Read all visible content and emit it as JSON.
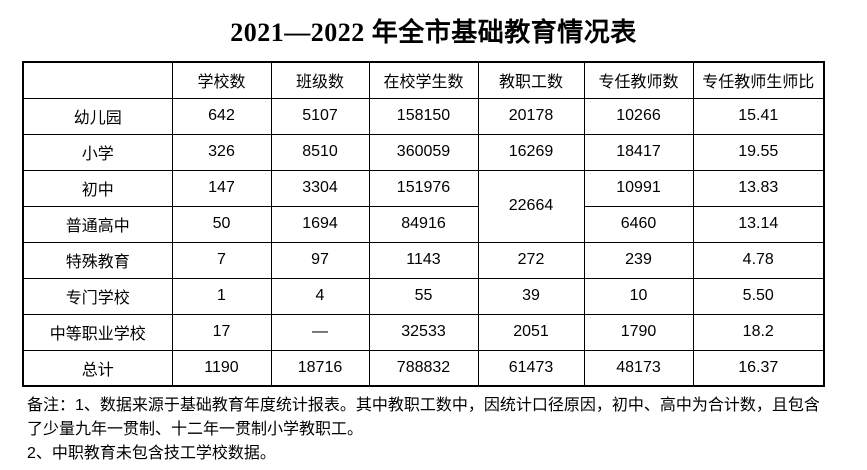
{
  "title": "2021—2022 年全市基础教育情况表",
  "table": {
    "headers": [
      "",
      "学校数",
      "班级数",
      "在校学生数",
      "教职工数",
      "专任教师数",
      "专任教师生师比"
    ],
    "rows": [
      {
        "label": "幼儿园",
        "cells": [
          {
            "v": "642"
          },
          {
            "v": "5107"
          },
          {
            "v": "158150"
          },
          {
            "v": "20178"
          },
          {
            "v": "10266"
          },
          {
            "v": "15.41"
          }
        ]
      },
      {
        "label": "小学",
        "cells": [
          {
            "v": "326"
          },
          {
            "v": "8510"
          },
          {
            "v": "360059"
          },
          {
            "v": "16269"
          },
          {
            "v": "18417"
          },
          {
            "v": "19.55"
          }
        ]
      },
      {
        "label": "初中",
        "cells": [
          {
            "v": "147"
          },
          {
            "v": "3304"
          },
          {
            "v": "151976"
          },
          {
            "v": "22664",
            "rowspan": 2
          },
          {
            "v": "10991"
          },
          {
            "v": "13.83"
          }
        ]
      },
      {
        "label": "普通高中",
        "cells": [
          {
            "v": "50"
          },
          {
            "v": "1694"
          },
          {
            "v": "84916"
          },
          {
            "v": "6460"
          },
          {
            "v": "13.14"
          }
        ]
      },
      {
        "label": "特殊教育",
        "cells": [
          {
            "v": "7"
          },
          {
            "v": "97"
          },
          {
            "v": "1143"
          },
          {
            "v": "272"
          },
          {
            "v": "239"
          },
          {
            "v": "4.78"
          }
        ]
      },
      {
        "label": "专门学校",
        "cells": [
          {
            "v": "1"
          },
          {
            "v": "4"
          },
          {
            "v": "55"
          },
          {
            "v": "39"
          },
          {
            "v": "10"
          },
          {
            "v": "5.50"
          }
        ]
      },
      {
        "label": "中等职业学校",
        "cells": [
          {
            "v": "17"
          },
          {
            "v": "—"
          },
          {
            "v": "32533"
          },
          {
            "v": "2051"
          },
          {
            "v": "1790"
          },
          {
            "v": "18.2"
          }
        ]
      },
      {
        "label": "总计",
        "cells": [
          {
            "v": "1190"
          },
          {
            "v": "18716"
          },
          {
            "v": "788832"
          },
          {
            "v": "61473"
          },
          {
            "v": "48173"
          },
          {
            "v": "16.37"
          }
        ]
      }
    ]
  },
  "notes": {
    "lines": [
      "备注：1、数据来源于基础教育年度统计报表。其中教职工数中，因统计口径原因，初中、高中为合计数，且包含",
      "了少量九年一贯制、十二年一贯制小学教职工。",
      "2、中职教育未包含技工学校数据。"
    ]
  }
}
